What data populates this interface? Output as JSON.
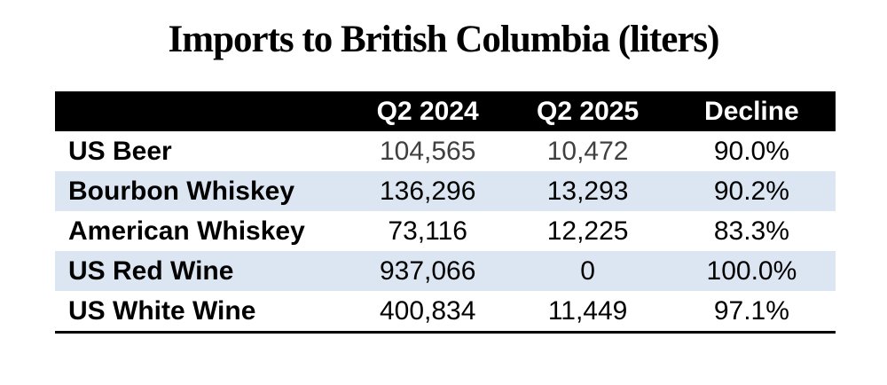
{
  "title": "Imports to British Columbia (liters)",
  "table": {
    "columns": [
      "",
      "Q2 2024",
      "Q2 2025",
      "Decline"
    ],
    "rows": [
      {
        "label": "US Beer",
        "q2_2024": "104,565",
        "q2_2025": "10,472",
        "decline": "90.0%"
      },
      {
        "label": "Bourbon Whiskey",
        "q2_2024": "136,296",
        "q2_2025": "13,293",
        "decline": "90.2%"
      },
      {
        "label": "American Whiskey",
        "q2_2024": "73,116",
        "q2_2025": "12,225",
        "decline": "83.3%"
      },
      {
        "label": "US Red Wine",
        "q2_2024": "937,066",
        "q2_2025": "0",
        "decline": "100.0%"
      },
      {
        "label": "US White Wine",
        "q2_2024": "400,834",
        "q2_2025": "11,449",
        "decline": "97.1%"
      }
    ]
  },
  "chart_data": {
    "type": "table",
    "title": "Imports to British Columbia (liters)",
    "columns": [
      "",
      "Q2 2024",
      "Q2 2025",
      "Decline"
    ],
    "rows": [
      [
        "US Beer",
        104565,
        10472,
        "90.0%"
      ],
      [
        "Bourbon Whiskey",
        136296,
        13293,
        "90.2%"
      ],
      [
        "American Whiskey",
        73116,
        12225,
        "83.3%"
      ],
      [
        "US Red Wine",
        937066,
        0,
        "100.0%"
      ],
      [
        "US White Wine",
        400834,
        11449,
        "97.1%"
      ]
    ]
  },
  "colors": {
    "header_bg": "#000000",
    "header_text": "#ffffff",
    "row_alt_bg": "#dce6f2",
    "muted_text": "#404040",
    "text": "#000000"
  }
}
